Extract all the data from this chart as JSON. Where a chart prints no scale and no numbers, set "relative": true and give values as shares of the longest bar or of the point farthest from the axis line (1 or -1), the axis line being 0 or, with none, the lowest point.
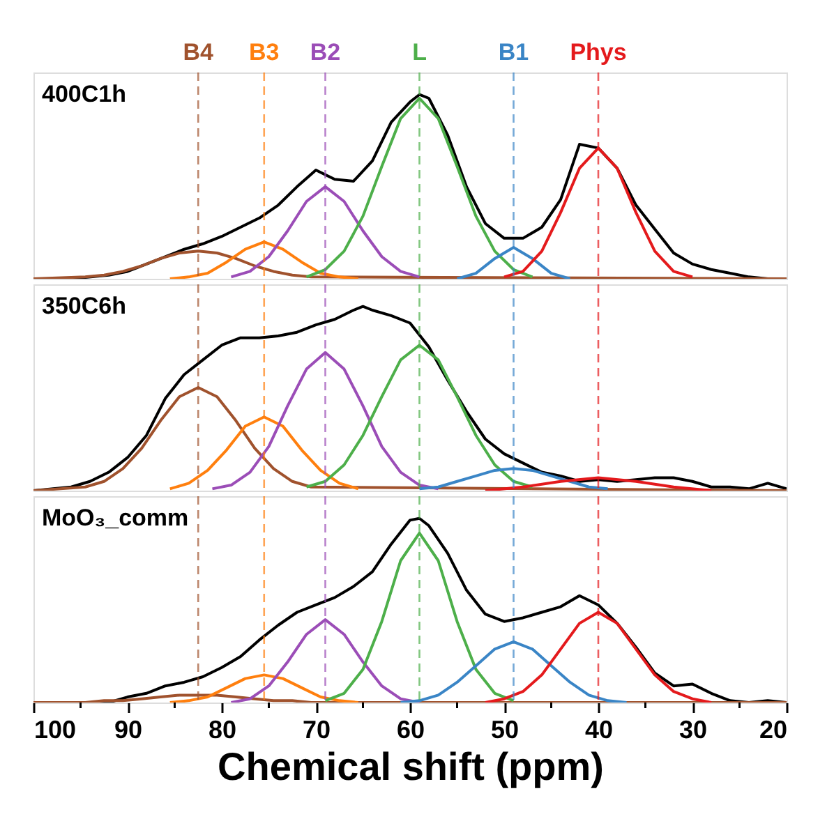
{
  "chart_data": [
    {
      "type": "line",
      "title": "400C1h",
      "relative": true,
      "xlim": [
        100,
        20
      ],
      "tick_labels": false,
      "line_style": "solid",
      "ref_lines": [
        {
          "axis": "x",
          "value": 82.5,
          "label": "B4",
          "color": "#a0522d",
          "line_style": "dashed"
        },
        {
          "axis": "x",
          "value": 75.5,
          "label": "B3",
          "color": "#ff7f0e",
          "line_style": "dashed"
        },
        {
          "axis": "x",
          "value": 69,
          "label": "B2",
          "color": "#9b4db7",
          "line_style": "dashed"
        },
        {
          "axis": "x",
          "value": 59,
          "label": "L",
          "color": "#4daf4a",
          "line_style": "dashed"
        },
        {
          "axis": "x",
          "value": 49,
          "label": "B1",
          "color": "#3a85c6",
          "line_style": "dashed"
        },
        {
          "axis": "x",
          "value": 40,
          "label": "Phys",
          "color": "#e41a1c",
          "line_style": "dashed"
        }
      ],
      "series": [
        {
          "color": "#000000",
          "x": [
            100,
            96,
            92,
            90,
            88,
            86,
            84,
            82,
            80,
            78,
            76,
            74,
            72,
            70,
            68,
            66,
            64,
            62,
            60,
            59,
            58,
            56,
            54,
            52,
            50,
            48,
            46,
            44,
            42,
            40,
            38,
            36,
            34,
            32,
            30,
            28,
            26,
            24,
            22,
            20
          ],
          "values": [
            0,
            0,
            0.02,
            0.04,
            0.08,
            0.12,
            0.16,
            0.19,
            0.23,
            0.28,
            0.33,
            0.4,
            0.5,
            0.59,
            0.54,
            0.53,
            0.64,
            0.85,
            0.96,
            1.0,
            0.98,
            0.78,
            0.5,
            0.3,
            0.22,
            0.22,
            0.28,
            0.43,
            0.73,
            0.71,
            0.6,
            0.4,
            0.27,
            0.14,
            0.08,
            0.05,
            0.03,
            0.01,
            0,
            0
          ]
        },
        {
          "color": "#a0522d",
          "x": [
            100,
            94.5,
            92.5,
            90.5,
            88.5,
            86.5,
            84.5,
            82.5,
            80.5,
            78.5,
            76.5,
            74.5,
            72.5,
            70.5,
            20
          ],
          "values": [
            0,
            0.01,
            0.02,
            0.04,
            0.07,
            0.11,
            0.14,
            0.15,
            0.14,
            0.11,
            0.07,
            0.04,
            0.02,
            0.01,
            0
          ]
        },
        {
          "color": "#ff7f0e",
          "x": [
            85.5,
            83.5,
            81.5,
            79.5,
            77.5,
            75.5,
            73.5,
            71.5,
            69.5,
            67.5,
            65.5
          ],
          "values": [
            0,
            0.01,
            0.03,
            0.09,
            0.16,
            0.2,
            0.16,
            0.09,
            0.03,
            0.01,
            0
          ]
        },
        {
          "color": "#9b4db7",
          "x": [
            79,
            77,
            75,
            73,
            71,
            69,
            67,
            65,
            63,
            61,
            59
          ],
          "values": [
            0.01,
            0.04,
            0.12,
            0.26,
            0.42,
            0.5,
            0.42,
            0.26,
            0.12,
            0.04,
            0.01
          ]
        },
        {
          "color": "#4daf4a",
          "x": [
            71,
            69,
            67,
            65,
            63,
            61,
            59,
            57,
            55,
            53,
            51,
            49,
            47
          ],
          "values": [
            0.01,
            0.05,
            0.15,
            0.34,
            0.61,
            0.87,
            0.98,
            0.87,
            0.61,
            0.34,
            0.15,
            0.05,
            0.01
          ]
        },
        {
          "color": "#3a85c6",
          "x": [
            55,
            53,
            51,
            49,
            47,
            45,
            43
          ],
          "values": [
            0,
            0.03,
            0.11,
            0.17,
            0.11,
            0.03,
            0
          ]
        },
        {
          "color": "#e41a1c",
          "x": [
            50,
            48,
            46,
            44,
            42,
            40,
            38,
            36,
            34,
            32,
            30
          ],
          "values": [
            0.01,
            0.04,
            0.15,
            0.36,
            0.6,
            0.71,
            0.6,
            0.36,
            0.15,
            0.04,
            0.01
          ]
        }
      ]
    },
    {
      "type": "line",
      "title": "350C6h",
      "relative": true,
      "xlim": [
        100,
        20
      ],
      "tick_labels": false,
      "line_style": "solid",
      "ref_lines": [
        {
          "axis": "x",
          "value": 82.5,
          "color": "#a0522d",
          "line_style": "dashed"
        },
        {
          "axis": "x",
          "value": 75.5,
          "color": "#ff7f0e",
          "line_style": "dashed"
        },
        {
          "axis": "x",
          "value": 69,
          "color": "#9b4db7",
          "line_style": "dashed"
        },
        {
          "axis": "x",
          "value": 59,
          "color": "#4daf4a",
          "line_style": "dashed"
        },
        {
          "axis": "x",
          "value": 49,
          "color": "#3a85c6",
          "line_style": "dashed"
        },
        {
          "axis": "x",
          "value": 40,
          "color": "#e41a1c",
          "line_style": "dashed"
        }
      ],
      "series": [
        {
          "color": "#000000",
          "x": [
            100,
            96,
            94,
            92,
            90,
            88,
            86,
            84,
            82,
            80,
            78,
            76,
            74,
            72,
            70,
            68,
            66,
            65,
            64,
            62,
            60,
            58,
            56,
            54,
            52,
            50,
            48,
            46,
            44,
            42,
            40,
            38,
            36,
            34,
            32,
            30,
            28,
            26,
            24,
            22,
            20
          ],
          "values": [
            0,
            0.02,
            0.05,
            0.1,
            0.18,
            0.3,
            0.5,
            0.63,
            0.71,
            0.79,
            0.83,
            0.83,
            0.84,
            0.86,
            0.9,
            0.93,
            0.98,
            1.0,
            0.98,
            0.95,
            0.91,
            0.78,
            0.6,
            0.43,
            0.28,
            0.2,
            0.15,
            0.1,
            0.08,
            0.05,
            0.06,
            0.05,
            0.06,
            0.07,
            0.07,
            0.05,
            0.02,
            0.02,
            0.01,
            0.04,
            0.01
          ]
        },
        {
          "color": "#a0522d",
          "x": [
            100,
            94.5,
            92.5,
            90.5,
            88.5,
            86.5,
            84.5,
            82.5,
            80.5,
            78.5,
            76.5,
            74.5,
            72.5,
            70.5,
            20
          ],
          "values": [
            0,
            0.02,
            0.05,
            0.12,
            0.23,
            0.38,
            0.51,
            0.56,
            0.51,
            0.38,
            0.23,
            0.12,
            0.05,
            0.02,
            0
          ]
        },
        {
          "color": "#ff7f0e",
          "x": [
            85.5,
            83.5,
            81.5,
            79.5,
            77.5,
            75.5,
            73.5,
            71.5,
            69.5,
            67.5,
            65.5
          ],
          "values": [
            0.01,
            0.04,
            0.11,
            0.22,
            0.35,
            0.4,
            0.35,
            0.22,
            0.11,
            0.04,
            0.01
          ]
        },
        {
          "color": "#9b4db7",
          "x": [
            81,
            79,
            77,
            75,
            73,
            71,
            69,
            67,
            65,
            63,
            61,
            59,
            57
          ],
          "values": [
            0.01,
            0.03,
            0.1,
            0.24,
            0.46,
            0.66,
            0.75,
            0.66,
            0.46,
            0.24,
            0.1,
            0.03,
            0.01
          ]
        },
        {
          "color": "#4daf4a",
          "x": [
            71,
            69,
            67,
            65,
            63,
            61,
            59,
            57,
            55,
            53,
            51,
            49,
            47
          ],
          "values": [
            0.02,
            0.05,
            0.14,
            0.3,
            0.51,
            0.71,
            0.79,
            0.71,
            0.51,
            0.3,
            0.14,
            0.05,
            0.02
          ]
        },
        {
          "color": "#3a85c6",
          "x": [
            59,
            57,
            55,
            53,
            51,
            49,
            47,
            45,
            43,
            41,
            39
          ],
          "values": [
            0.01,
            0.02,
            0.05,
            0.08,
            0.11,
            0.12,
            0.11,
            0.08,
            0.05,
            0.02,
            0.01
          ]
        },
        {
          "color": "#e41a1c",
          "x": [
            52,
            48,
            44,
            40,
            36,
            32,
            28
          ],
          "values": [
            0,
            0.02,
            0.05,
            0.07,
            0.05,
            0.02,
            0
          ]
        }
      ]
    },
    {
      "type": "line",
      "title": "MoO₃_comm",
      "relative": true,
      "xlim": [
        100,
        20
      ],
      "tick_labels": "x",
      "xlabel": "Chemical shift (ppm)",
      "line_style": "solid",
      "xticks": [
        100,
        {
          "value": 95,
          "label": null
        },
        90,
        {
          "value": 85,
          "label": null
        },
        80,
        {
          "value": 75,
          "label": null
        },
        70,
        {
          "value": 65,
          "label": null
        },
        60,
        {
          "value": 55,
          "label": null
        },
        50,
        {
          "value": 45,
          "label": null
        },
        40,
        {
          "value": 35,
          "label": null
        },
        30,
        {
          "value": 25,
          "label": null
        },
        20
      ],
      "ref_lines": [
        {
          "axis": "x",
          "value": 82.5,
          "color": "#a0522d",
          "line_style": "dashed"
        },
        {
          "axis": "x",
          "value": 75.5,
          "color": "#ff7f0e",
          "line_style": "dashed"
        },
        {
          "axis": "x",
          "value": 69,
          "color": "#9b4db7",
          "line_style": "dashed"
        },
        {
          "axis": "x",
          "value": 59,
          "color": "#4daf4a",
          "line_style": "dashed"
        },
        {
          "axis": "x",
          "value": 49,
          "color": "#3a85c6",
          "line_style": "dashed"
        },
        {
          "axis": "x",
          "value": 40,
          "color": "#e41a1c",
          "line_style": "dashed"
        }
      ],
      "series": [
        {
          "color": "#000000",
          "x": [
            100,
            96,
            92,
            90,
            88,
            86,
            84,
            82,
            80,
            78,
            76,
            74,
            72,
            70,
            68,
            66,
            64,
            62,
            60,
            59,
            58,
            56,
            54,
            52,
            50,
            48,
            46,
            44,
            42,
            40,
            38,
            36,
            34,
            32,
            30,
            28,
            26,
            24,
            22,
            20
          ],
          "values": [
            0,
            0,
            0,
            0.03,
            0.05,
            0.09,
            0.11,
            0.14,
            0.19,
            0.25,
            0.34,
            0.42,
            0.49,
            0.53,
            0.57,
            0.63,
            0.71,
            0.86,
            0.99,
            1.0,
            0.96,
            0.81,
            0.61,
            0.48,
            0.44,
            0.46,
            0.49,
            0.52,
            0.58,
            0.53,
            0.43,
            0.3,
            0.16,
            0.09,
            0.1,
            0.05,
            0.01,
            0,
            0.01,
            0
          ]
        },
        {
          "color": "#a0522d",
          "x": [
            100,
            94.5,
            92.5,
            90.5,
            88.5,
            86.5,
            84.5,
            82.5,
            80.5,
            78.5,
            76.5,
            74.5,
            72.5,
            70.5,
            20
          ],
          "values": [
            0,
            0,
            0.01,
            0.01,
            0.02,
            0.03,
            0.04,
            0.04,
            0.04,
            0.03,
            0.02,
            0.01,
            0.01,
            0,
            0
          ]
        },
        {
          "color": "#ff7f0e",
          "x": [
            85.5,
            83.5,
            81.5,
            79.5,
            77.5,
            75.5,
            73.5,
            71.5,
            69.5,
            67.5,
            65.5
          ],
          "values": [
            0,
            0.01,
            0.03,
            0.08,
            0.13,
            0.15,
            0.13,
            0.08,
            0.03,
            0.01,
            0
          ]
        },
        {
          "color": "#9b4db7",
          "x": [
            79,
            77,
            75,
            73,
            71,
            69,
            67,
            65,
            63,
            61,
            59
          ],
          "values": [
            0,
            0.02,
            0.09,
            0.22,
            0.37,
            0.45,
            0.37,
            0.22,
            0.09,
            0.02,
            0
          ]
        },
        {
          "color": "#4daf4a",
          "x": [
            69,
            67,
            65,
            63,
            61,
            59,
            57,
            55,
            53,
            51,
            49
          ],
          "values": [
            0.01,
            0.05,
            0.18,
            0.44,
            0.77,
            0.92,
            0.77,
            0.44,
            0.18,
            0.05,
            0.01
          ]
        },
        {
          "color": "#3a85c6",
          "x": [
            61,
            59,
            57,
            55,
            53,
            51,
            49,
            47,
            45,
            43,
            41,
            39,
            37
          ],
          "values": [
            0,
            0.01,
            0.04,
            0.11,
            0.2,
            0.29,
            0.33,
            0.29,
            0.2,
            0.11,
            0.04,
            0.01,
            0
          ]
        },
        {
          "color": "#e41a1c",
          "x": [
            52,
            50,
            48,
            46,
            44,
            42,
            40,
            38,
            36,
            34,
            32,
            30,
            28
          ],
          "values": [
            0,
            0.02,
            0.06,
            0.15,
            0.29,
            0.43,
            0.49,
            0.43,
            0.29,
            0.15,
            0.06,
            0.02,
            0
          ]
        }
      ]
    }
  ]
}
